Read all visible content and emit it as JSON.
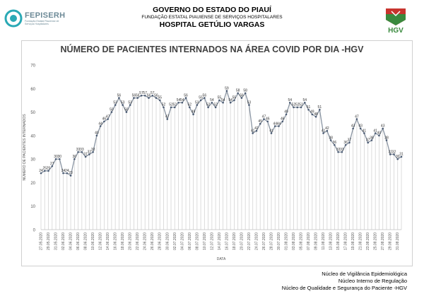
{
  "header": {
    "org_name": "FEPISERH",
    "org_sub": "Fundação Estatal Piauiense de Serviços Hospitalares",
    "line1": "GOVERNO DO ESTADO DO PIAUÍ",
    "line2": "FUNDAÇÃO ESTATAL PIAUIENSE DE SERVIÇOS HOSPITALARES",
    "line3": "HOSPITAL GETÚLIO VARGAS",
    "right_logo": "HGV"
  },
  "chart_data": {
    "type": "line",
    "title": "NÚMERO DE PACIENTES INTERNADOS NA ÁREA COVID POR DIA -HGV",
    "xlabel": "DATA",
    "ylabel": "NÚMERO DE PACIENTES INTERNADOS",
    "ylim": [
      0,
      70
    ],
    "yticks": [
      0,
      10,
      20,
      30,
      40,
      50,
      60,
      70
    ],
    "grid": "vertical drop lines",
    "tick_labels": [
      "27.05.2020",
      "29.05.2020",
      "31.05.2020",
      "02.06.2020",
      "04.06.2020",
      "06.06.2020",
      "08.06.2020",
      "10.06.2020",
      "12.06.2020",
      "14.06.2020",
      "16.06.2020",
      "18.06.2020",
      "20.06.2020",
      "22.06.2020",
      "24.06.2020",
      "26.06.2020",
      "28.06.2020",
      "30.06.2020",
      "02.07.2020",
      "04.07.2020",
      "06.07.2020",
      "08.07.2020",
      "10.07.2020",
      "12.07.2020",
      "14.07.2020",
      "16.07.2020",
      "18.07.2020",
      "20.07.2020",
      "22.07.2020",
      "24.07.2020",
      "26.07.2020",
      "28.07.2020",
      "30.07.2020",
      "01.08.2020",
      "03.08.2020",
      "05.08.2020",
      "07.08.2020",
      "09.08.2020",
      "11.08.2020",
      "13.08.2020",
      "15.08.2020",
      "17.08.2020",
      "19.08.2020",
      "21.08.2020",
      "23.08.2020",
      "25.08.2020",
      "27.08.2020",
      "29.08.2020",
      "31.08.2020"
    ],
    "series": [
      {
        "values": [
          24,
          25,
          25,
          27,
          30,
          30,
          24,
          24,
          23,
          30,
          33,
          33,
          31,
          32,
          33,
          40,
          44,
          46,
          47,
          50,
          53,
          56,
          53,
          50,
          53,
          56,
          56,
          57,
          57,
          56,
          57,
          56,
          55,
          52,
          47,
          52,
          52,
          54,
          54,
          56,
          52,
          49,
          53,
          55,
          56,
          52,
          54,
          52,
          55,
          54,
          59,
          54,
          55,
          58,
          56,
          58,
          53,
          41,
          42,
          45,
          47,
          46,
          41,
          44,
          44,
          46,
          49,
          54,
          52,
          52,
          52,
          54,
          51,
          49,
          48,
          51,
          41,
          42,
          38,
          36,
          33,
          33,
          36,
          37,
          43,
          47,
          43,
          41,
          37,
          38,
          41,
          40,
          43,
          38,
          32,
          32,
          30,
          31
        ]
      }
    ],
    "line_color": "#8a95a3",
    "marker_color": "#4a5a72"
  },
  "footer": {
    "line1": "Núcleo de Vigilância Epidemiológica",
    "line2": "Núcleo Interno de Regulação",
    "line3": "Núcleo de Qualidade e Segurança do Paciente -HGV"
  }
}
